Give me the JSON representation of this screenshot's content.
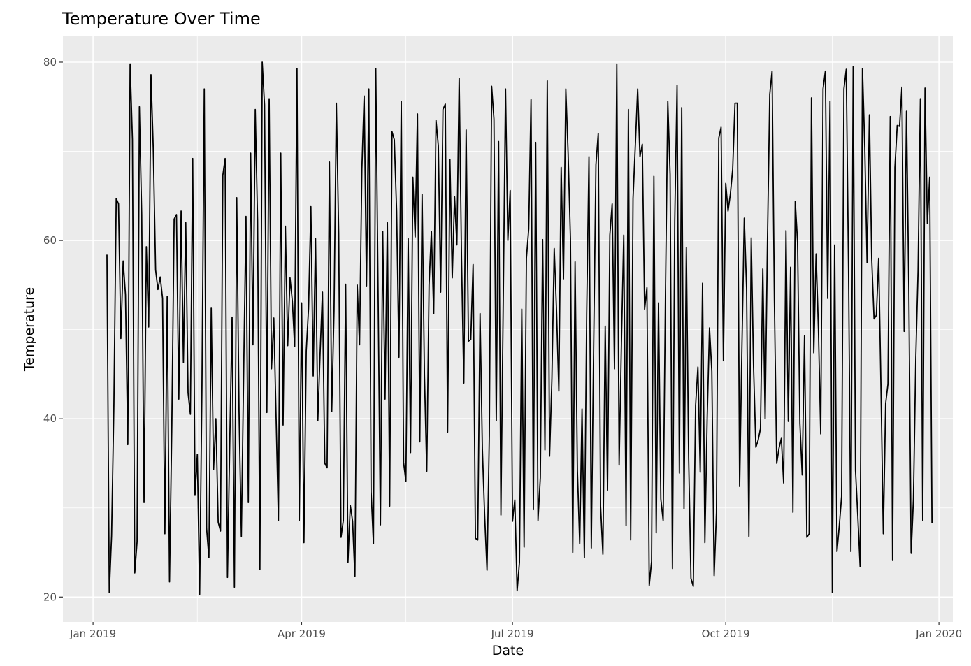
{
  "chart_data": {
    "type": "line",
    "title": "Temperature Over Time",
    "xlabel": "Date",
    "ylabel": "Temperature",
    "xlim": [
      "2018-12-19",
      "2020-01-07"
    ],
    "ylim": [
      17.2,
      82.9
    ],
    "x_ticks": [
      {
        "value": "2019-01-01",
        "label": "Jan 2019"
      },
      {
        "value": "2019-04-01",
        "label": "Apr 2019"
      },
      {
        "value": "2019-07-01",
        "label": "Jul 2019"
      },
      {
        "value": "2019-10-01",
        "label": "Oct 2019"
      },
      {
        "value": "2020-01-01",
        "label": "Jan 2020"
      }
    ],
    "x_minor_ticks": [
      "2019-02-15",
      "2019-05-16",
      "2019-08-16",
      "2019-11-16"
    ],
    "y_ticks": [
      20,
      40,
      60,
      80
    ],
    "y_minor_ticks": [
      30,
      50,
      70
    ],
    "grid": true,
    "colors": {
      "panel": "#ebebeb",
      "grid": "#ffffff",
      "line": "#000000",
      "tick_label": "#4d4d4d"
    },
    "series": [
      {
        "x_start": "2019-01-07",
        "x_step_days": 1,
        "values": [
          58.4,
          20.5,
          26.9,
          41.6,
          64.7,
          64.1,
          49.0,
          57.7,
          53.9,
          37.1,
          79.8,
          71.3,
          22.7,
          26.2,
          75.0,
          62.9,
          30.6,
          59.3,
          50.3,
          78.6,
          70.2,
          56.7,
          54.5,
          55.9,
          53.5,
          27.1,
          53.7,
          21.7,
          39.3,
          62.4,
          62.9,
          42.2,
          63.3,
          46.3,
          62.0,
          42.9,
          40.5,
          69.2,
          31.4,
          36.0,
          20.3,
          43.7,
          77.0,
          27.7,
          24.4,
          52.4,
          34.3,
          40.0,
          28.4,
          27.4,
          67.3,
          69.2,
          22.2,
          37.4,
          51.4,
          21.1,
          64.8,
          40.8,
          26.8,
          45.4,
          62.7,
          30.6,
          69.8,
          48.3,
          74.7,
          62.2,
          23.1,
          80.0,
          75.2,
          40.7,
          75.9,
          45.6,
          51.3,
          40.0,
          28.6,
          69.8,
          39.3,
          61.6,
          48.2,
          55.8,
          53.2,
          48.1,
          79.3,
          28.6,
          53.0,
          26.1,
          47.6,
          52.4,
          63.8,
          44.8,
          60.2,
          39.8,
          47.5,
          54.2,
          35.0,
          34.5,
          68.8,
          40.8,
          52.2,
          75.4,
          60.8,
          26.7,
          28.6,
          55.1,
          23.9,
          30.3,
          28.5,
          22.3,
          55.0,
          48.3,
          68.0,
          76.2,
          54.9,
          77.0,
          31.8,
          26.0,
          79.3,
          54.3,
          28.1,
          61.0,
          42.2,
          62.0,
          30.2,
          72.2,
          71.3,
          63.3,
          46.9,
          75.6,
          35.1,
          33.0,
          60.2,
          36.2,
          67.1,
          60.4,
          74.2,
          37.4,
          65.2,
          44.9,
          34.1,
          55.0,
          61.0,
          51.8,
          73.5,
          70.6,
          54.2,
          74.7,
          75.3,
          38.5,
          69.1,
          55.8,
          64.9,
          59.5,
          78.2,
          58.0,
          44.0,
          72.4,
          48.7,
          48.9,
          57.3,
          26.6,
          26.4,
          51.8,
          36.6,
          29.0,
          23.0,
          38.1,
          77.3,
          73.6,
          39.8,
          71.1,
          29.2,
          53.0,
          77.0,
          60.0,
          65.6,
          28.5,
          30.9,
          20.7,
          23.9,
          52.3,
          25.6,
          58.0,
          61.3,
          75.8,
          29.8,
          71.0,
          28.6,
          33.4,
          60.1,
          36.5,
          77.9,
          35.8,
          44.5,
          59.1,
          52.1,
          43.1,
          68.2,
          55.7,
          77.0,
          69.8,
          60.2,
          25.0,
          57.6,
          34.2,
          26.0,
          41.1,
          24.4,
          51.7,
          69.4,
          25.5,
          47.8,
          68.5,
          72.0,
          30.2,
          24.8,
          50.4,
          32.0,
          60.6,
          64.1,
          45.6,
          79.8,
          34.8,
          48.5,
          60.6,
          28.0,
          74.7,
          26.4,
          64.7,
          70.7,
          77.0,
          69.4,
          70.8,
          52.3,
          54.7,
          21.3,
          24.0,
          67.2,
          27.2,
          53.0,
          31.0,
          28.6,
          54.0,
          75.6,
          67.4,
          23.2,
          62.1,
          77.4,
          33.9,
          74.9,
          29.9,
          59.2,
          35.7,
          22.1,
          21.2,
          41.5,
          45.8,
          34.0,
          55.2,
          26.1,
          40.1,
          50.2,
          45.3,
          22.4,
          29.5,
          71.5,
          72.7,
          46.5,
          66.4,
          63.3,
          65.2,
          68.0,
          75.4,
          75.4,
          32.4,
          48.2,
          62.5,
          54.6,
          26.8,
          60.3,
          45.9,
          36.8,
          37.6,
          38.9,
          56.8,
          40.0,
          59.8,
          76.4,
          79.0,
          53.2,
          35.0,
          36.7,
          37.8,
          32.8,
          61.1,
          39.7,
          57.0,
          29.5,
          64.4,
          59.8,
          39.5,
          33.7,
          49.3,
          26.7,
          27.1,
          76.0,
          47.4,
          58.5,
          50.1,
          38.3,
          77.0,
          79.0,
          53.5,
          75.6,
          20.5,
          59.5,
          25.1,
          28.0,
          31.3,
          77.0,
          79.2,
          56.7,
          25.1,
          79.5,
          34.2,
          29.0,
          23.4,
          79.3,
          70.4,
          57.5,
          74.1,
          57.9,
          51.2,
          51.6,
          58.0,
          43.2,
          27.1,
          41.7,
          43.9,
          73.9,
          24.1,
          68.2,
          72.9,
          72.8,
          77.2,
          49.8,
          74.5,
          54.7,
          24.9,
          31.0,
          46.7,
          56.6,
          75.9,
          28.6,
          77.1,
          61.9,
          67.1,
          28.3
        ]
      }
    ]
  }
}
